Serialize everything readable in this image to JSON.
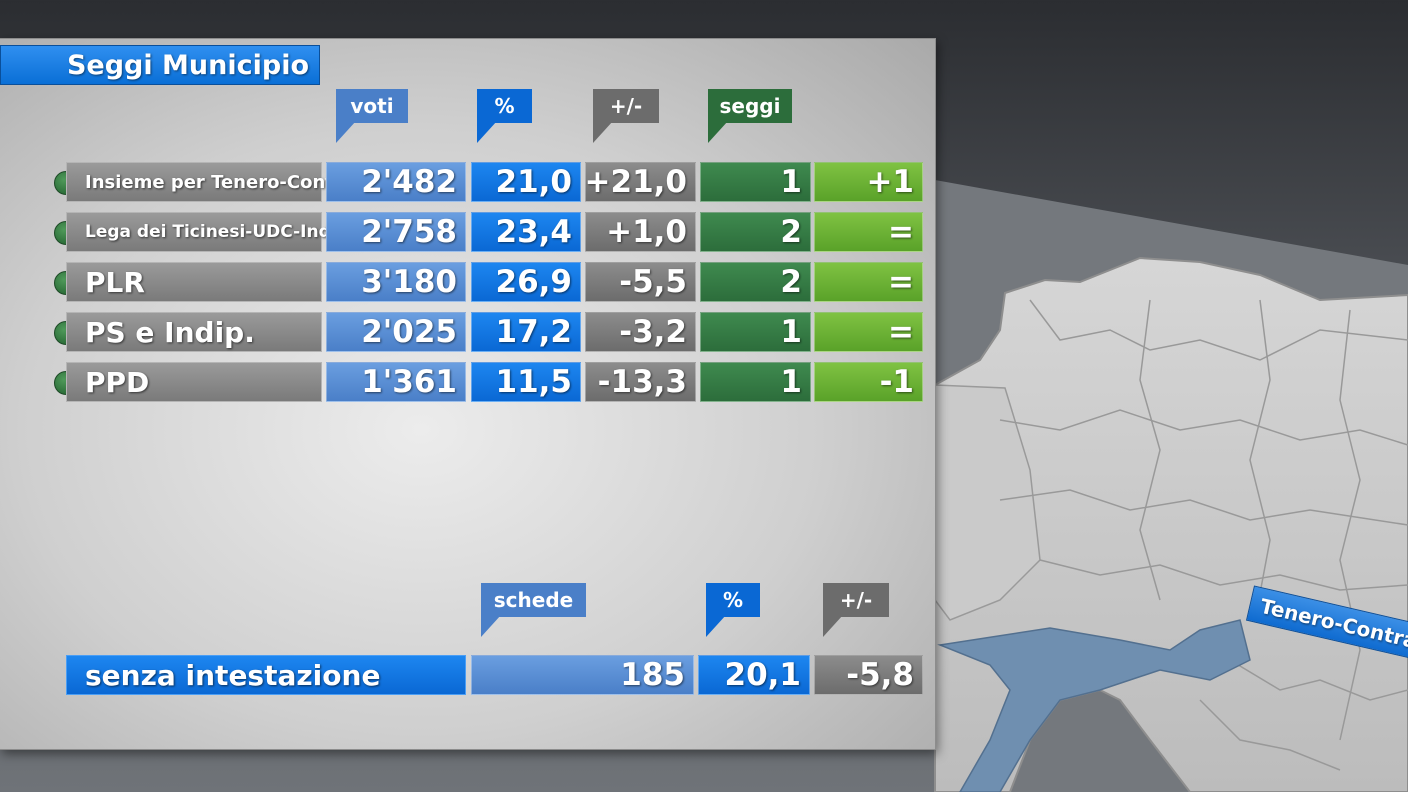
{
  "title": "Seggi Municipio",
  "headers": {
    "voti": "voti",
    "pct": "%",
    "diff": "+/-",
    "seggi": "seggi"
  },
  "parties": [
    {
      "name": "Insieme per Tenero-Contra",
      "voti": "2'482",
      "pct": "21,0",
      "diff": "+21,0",
      "seggi": "1",
      "change": "+1"
    },
    {
      "name": "Lega dei Ticinesi-UDC-Indip.",
      "voti": "2'758",
      "pct": "23,4",
      "diff": "+1,0",
      "seggi": "2",
      "change": "="
    },
    {
      "name": "PLR",
      "voti": "3'180",
      "pct": "26,9",
      "diff": "-5,5",
      "seggi": "2",
      "change": "="
    },
    {
      "name": "PS e Indip.",
      "voti": "2'025",
      "pct": "17,2",
      "diff": "-3,2",
      "seggi": "1",
      "change": "="
    },
    {
      "name": "PPD",
      "voti": "1'361",
      "pct": "11,5",
      "diff": "-13,3",
      "seggi": "1",
      "change": "-1"
    }
  ],
  "bottom": {
    "headers": {
      "schede": "schede",
      "pct": "%",
      "diff": "+/-"
    },
    "label": "senza intestazione",
    "schede": "185",
    "pct": "20,1",
    "diff": "-5,8"
  },
  "map_label": "Tenero-Contra",
  "colors": {
    "party_dot": "#2d6f3a",
    "voti": "#4a7fc8",
    "pct": "#0a68d4",
    "diff": "#6c6c6c",
    "seggi": "#2c6d3b",
    "change": "#5aa229",
    "lake": "#6f8fb0"
  }
}
